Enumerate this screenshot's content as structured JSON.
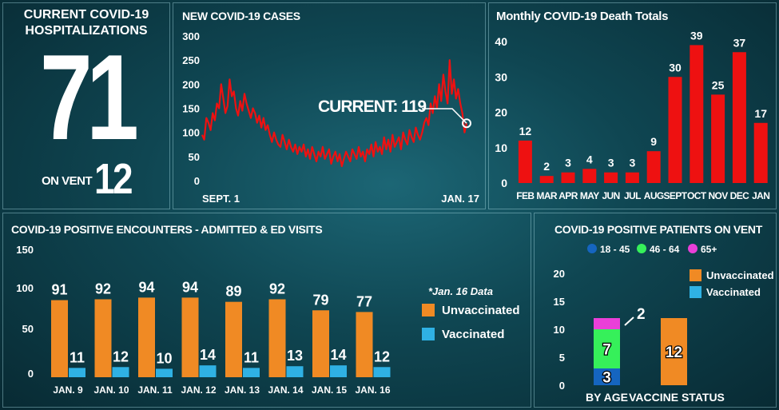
{
  "colors": {
    "red": "#ee1111",
    "orange": "#f08a24",
    "blue": "#2fb1e4",
    "age_blue": "#1565c0",
    "age_green": "#36f05a",
    "age_magenta": "#ea3fd8"
  },
  "hospital": {
    "title_line1": "CURRENT COVID-19",
    "title_line2": "HOSPITALIZATIONS",
    "count": "71",
    "vent_label": "ON VENT",
    "vent_count": "12"
  },
  "new_cases": {
    "title": "NEW COVID-19 CASES",
    "current_label": "CURRENT: 119",
    "x_start": "SEPT. 1",
    "x_end": "JAN. 17"
  },
  "deaths": {
    "title": "Monthly COVID-19 Death Totals"
  },
  "encounters": {
    "title": "COVID-19 POSITIVE ENCOUNTERS - ADMITTED & ED VISITS",
    "note": "*Jan. 16 Data",
    "legend_unvax": "Unvaccinated",
    "legend_vax": "Vaccinated"
  },
  "vent": {
    "title": "COVID-19 POSITIVE PATIENTS ON VENT",
    "legend_unvax": "Unvaccinated",
    "legend_vax": "Vaccinated"
  },
  "chart_data": [
    {
      "type": "line",
      "title": "NEW COVID-19 CASES",
      "series": [
        {
          "name": "New cases",
          "values": [
            95,
            85,
            130,
            120,
            105,
            140,
            125,
            160,
            150,
            200,
            170,
            140,
            155,
            210,
            175,
            185,
            150,
            135,
            165,
            145,
            180,
            160,
            145,
            130,
            150,
            140,
            120,
            135,
            110,
            130,
            105,
            115,
            95,
            80,
            100,
            85,
            75,
            70,
            95,
            80,
            65,
            85,
            70,
            60,
            75,
            55,
            70,
            60,
            75,
            50,
            65,
            45,
            70,
            55,
            40,
            60,
            50,
            70,
            45,
            55,
            65,
            35,
            50,
            60,
            40,
            55,
            30,
            45,
            60,
            50,
            40,
            65,
            55,
            45,
            70,
            50,
            60,
            40,
            65,
            55,
            75,
            50,
            80,
            60,
            70,
            55,
            90,
            65,
            85,
            60,
            95,
            70,
            80,
            90,
            65,
            100,
            85,
            75,
            105,
            90,
            80,
            110,
            95,
            85,
            100,
            120,
            130,
            115,
            160,
            140,
            175,
            150,
            200,
            165,
            220,
            185,
            160,
            250,
            180,
            210,
            170,
            190,
            160,
            140,
            100,
            119
          ]
        }
      ],
      "xlabel_start": "SEPT. 1",
      "xlabel_end": "JAN. 17",
      "ylim": [
        0,
        300
      ],
      "yticks": [
        0,
        50,
        100,
        150,
        200,
        250,
        300
      ],
      "current": 119
    },
    {
      "type": "bar",
      "title": "Monthly COVID-19 Death Totals",
      "categories": [
        "FEB",
        "MAR",
        "APR",
        "MAY",
        "JUN",
        "JUL",
        "AUG",
        "SEPT",
        "OCT",
        "NOV",
        "DEC",
        "JAN"
      ],
      "values": [
        12,
        2,
        3,
        4,
        3,
        3,
        9,
        30,
        39,
        25,
        37,
        17
      ],
      "ylim": [
        0,
        40
      ],
      "yticks": [
        0,
        10,
        20,
        30,
        40
      ]
    },
    {
      "type": "bar",
      "title": "COVID-19 POSITIVE ENCOUNTERS - ADMITTED & ED VISITS",
      "categories": [
        "JAN. 9",
        "JAN. 10",
        "JAN. 11",
        "JAN. 12",
        "JAN. 13",
        "JAN. 14",
        "JAN. 15",
        "JAN. 16"
      ],
      "series": [
        {
          "name": "Unvaccinated",
          "values": [
            91,
            92,
            94,
            94,
            89,
            92,
            79,
            77
          ]
        },
        {
          "name": "Vaccinated",
          "values": [
            11,
            12,
            10,
            14,
            11,
            13,
            14,
            12
          ]
        }
      ],
      "ylim": [
        0,
        150
      ],
      "yticks": [
        0,
        50,
        100,
        150
      ]
    },
    {
      "type": "bar",
      "title": "COVID-19 POSITIVE PATIENTS ON VENT",
      "categories": [
        "BY AGE",
        "VACCINE STATUS"
      ],
      "stacked_by_age": [
        {
          "name": "18 - 45",
          "value": 3
        },
        {
          "name": "46 - 64",
          "value": 7
        },
        {
          "name": "65+",
          "value": 2
        }
      ],
      "vaccine_status": [
        {
          "name": "Unvaccinated",
          "value": 12
        },
        {
          "name": "Vaccinated",
          "value": 0
        }
      ],
      "ylim": [
        0,
        20
      ],
      "yticks": [
        0,
        5,
        10,
        15,
        20
      ]
    }
  ]
}
